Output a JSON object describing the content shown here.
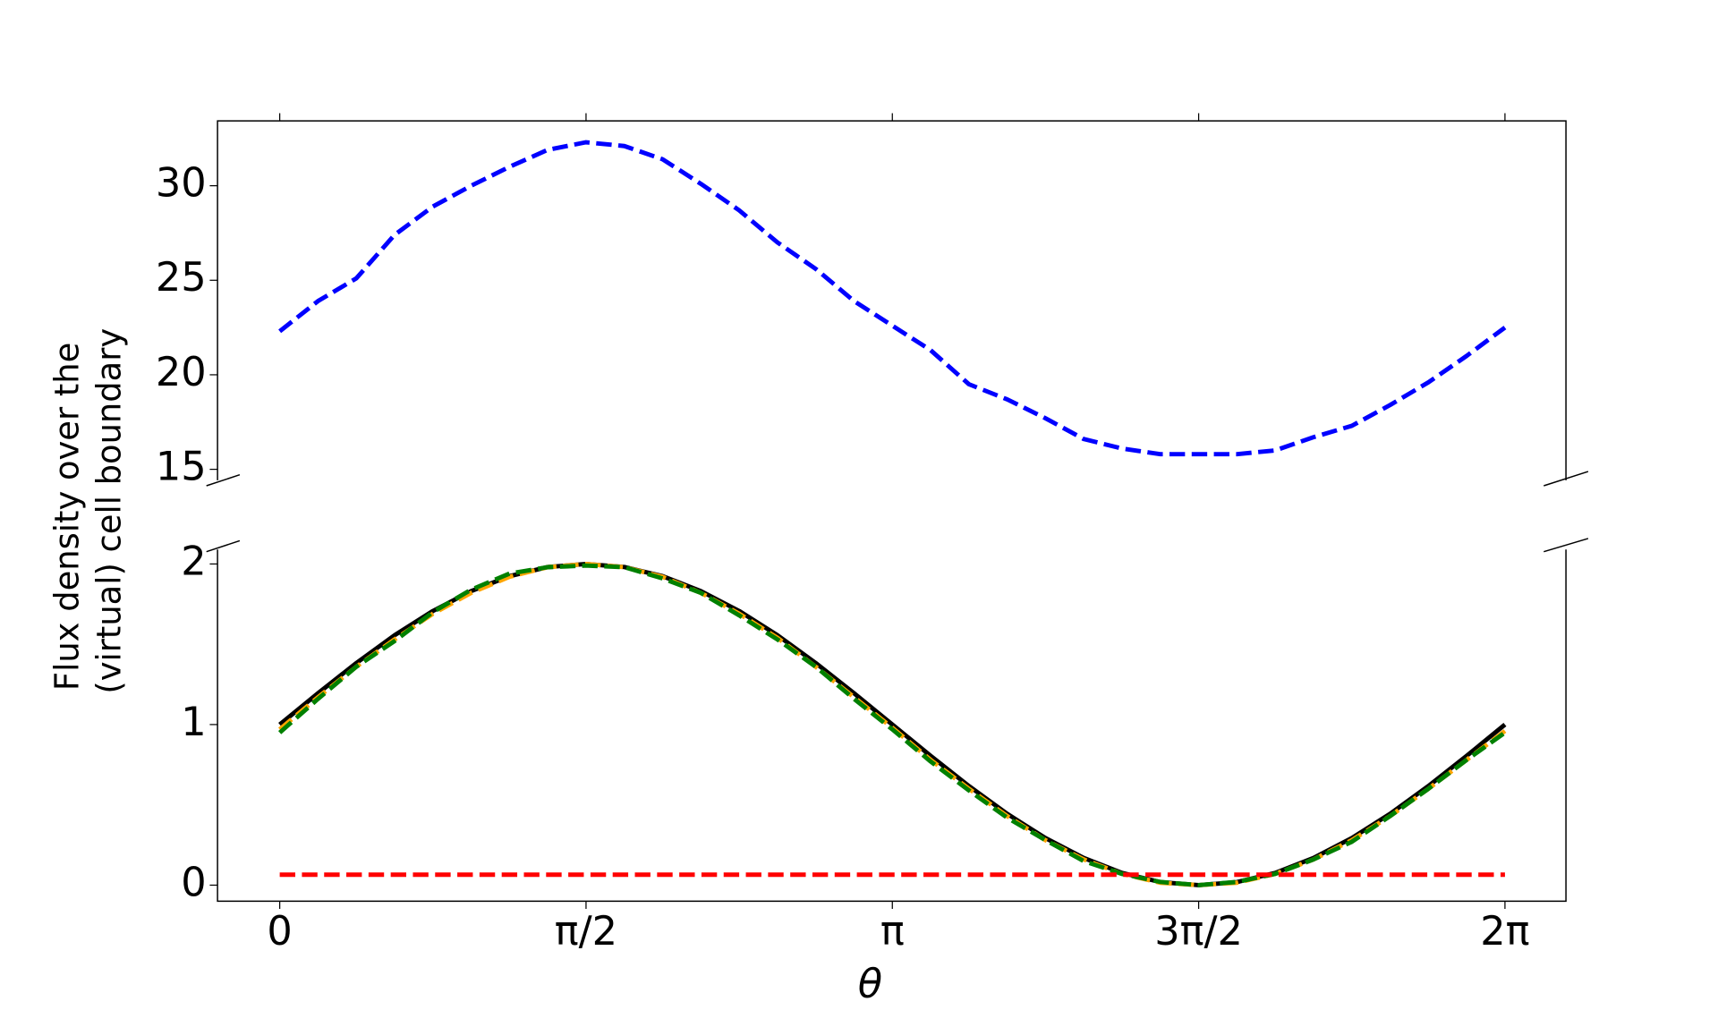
{
  "chart_data": {
    "type": "line",
    "xlabel": "θ",
    "ylabel": [
      "Flux density over the",
      "(virtual) cell boundary"
    ],
    "xlim": [
      -0.319,
      6.596
    ],
    "xticks": [
      {
        "value": 0,
        "label": "0"
      },
      {
        "value": 1.5708,
        "label": "π/2"
      },
      {
        "value": 3.1416,
        "label": "π"
      },
      {
        "value": 4.7124,
        "label": "3π/2"
      },
      {
        "value": 6.2832,
        "label": "2π"
      }
    ],
    "x": [
      0,
      0.1963,
      0.3927,
      0.589,
      0.7854,
      0.9817,
      1.1781,
      1.3744,
      1.5708,
      1.7671,
      1.9635,
      2.1598,
      2.3562,
      2.5525,
      2.7489,
      2.9452,
      3.1416,
      3.3379,
      3.5343,
      3.7306,
      3.927,
      4.1233,
      4.3197,
      4.516,
      4.7124,
      4.9087,
      5.1051,
      5.3014,
      5.4978,
      5.6941,
      5.8905,
      6.0868,
      6.2832
    ],
    "panels": [
      {
        "ylim": [
          14.42,
          33.43
        ],
        "yticks": [
          15,
          20,
          25,
          30
        ],
        "series": [
          {
            "color": "#0000ff",
            "dash": true,
            "values": [
              22.3,
              23.9,
              25.1,
              27.4,
              28.9,
              30.0,
              31.0,
              31.9,
              32.3,
              32.1,
              31.4,
              30.1,
              28.7,
              27.0,
              25.6,
              23.9,
              22.6,
              21.3,
              19.5,
              18.7,
              17.7,
              16.6,
              16.1,
              15.8,
              15.8,
              15.8,
              16.0,
              16.7,
              17.3,
              18.4,
              19.6,
              21.0,
              22.5
            ]
          }
        ]
      },
      {
        "ylim": [
          -0.1,
          2.09
        ],
        "yticks": [
          0,
          1,
          2
        ],
        "series": [
          {
            "color": "#000000",
            "dash": false,
            "values": [
              1,
              1.195,
              1.383,
              1.556,
              1.707,
              1.831,
              1.924,
              1.981,
              2,
              1.981,
              1.924,
              1.831,
              1.707,
              1.556,
              1.383,
              1.195,
              1,
              0.805,
              0.617,
              0.444,
              0.293,
              0.169,
              0.076,
              0.019,
              0,
              0.019,
              0.076,
              0.169,
              0.293,
              0.444,
              0.617,
              0.805,
              1
            ]
          },
          {
            "color": "#ffa500",
            "dash": true,
            "values": [
              0.97,
              1.17,
              1.36,
              1.53,
              1.69,
              1.82,
              1.92,
              1.98,
              2,
              1.98,
              1.92,
              1.82,
              1.69,
              1.54,
              1.36,
              1.17,
              0.98,
              0.78,
              0.6,
              0.43,
              0.28,
              0.16,
              0.07,
              0.015,
              0,
              0.015,
              0.07,
              0.16,
              0.28,
              0.43,
              0.6,
              0.78,
              0.96
            ]
          },
          {
            "color": "#008000",
            "dash": true,
            "values": [
              0.95,
              1.16,
              1.36,
              1.52,
              1.7,
              1.84,
              1.94,
              1.98,
              1.99,
              1.98,
              1.91,
              1.82,
              1.68,
              1.53,
              1.36,
              1.16,
              0.97,
              0.77,
              0.59,
              0.42,
              0.28,
              0.15,
              0.07,
              0.02,
              0,
              0.02,
              0.07,
              0.16,
              0.27,
              0.43,
              0.6,
              0.78,
              0.95
            ]
          },
          {
            "color": "#ff0000",
            "dash": true,
            "values": [
              0.065,
              0.065,
              0.065,
              0.065,
              0.065,
              0.065,
              0.065,
              0.065,
              0.065,
              0.065,
              0.065,
              0.065,
              0.065,
              0.065,
              0.065,
              0.065,
              0.065,
              0.065,
              0.065,
              0.065,
              0.065,
              0.065,
              0.065,
              0.065,
              0.065,
              0.065,
              0.065,
              0.065,
              0.065,
              0.065,
              0.065,
              0.065,
              0.065
            ]
          }
        ]
      }
    ]
  }
}
